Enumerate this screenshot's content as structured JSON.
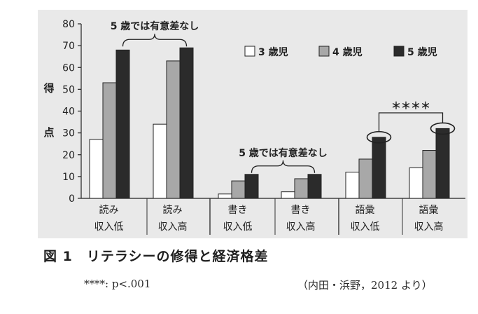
{
  "chart_data": {
    "type": "bar",
    "categories": [
      [
        "読み",
        "収入低"
      ],
      [
        "読み",
        "収入高"
      ],
      [
        "書き",
        "収入低"
      ],
      [
        "書き",
        "収入高"
      ],
      [
        "語彙",
        "収入低"
      ],
      [
        "語彙",
        "収入高"
      ]
    ],
    "series": [
      {
        "name": "3 歳児",
        "color": "#ffffff",
        "values": [
          27,
          34,
          2,
          3,
          12,
          14
        ]
      },
      {
        "name": "4 歳児",
        "color": "#a8a8a8",
        "values": [
          53,
          63,
          8,
          9,
          18,
          22
        ]
      },
      {
        "name": "5 歳児",
        "color": "#2b2b2b",
        "values": [
          68,
          69,
          11,
          11,
          28,
          32
        ]
      }
    ],
    "ylabel": [
      "得",
      "点"
    ],
    "ylim": [
      0,
      80
    ],
    "yticks": [
      0,
      10,
      20,
      30,
      40,
      50,
      60,
      70,
      80
    ],
    "legend_position": "top-right",
    "annotations": [
      {
        "text": "5 歳では有意差なし",
        "groups": [
          0,
          1
        ]
      },
      {
        "text": "5 歳では有意差なし",
        "groups": [
          2,
          3
        ]
      },
      {
        "text": "＊＊＊＊",
        "groups": [
          4,
          5
        ],
        "circled_series": 2
      }
    ]
  },
  "caption": {
    "title": "図 1　リテラシーの修得と経済格差",
    "note": "****: p<.001",
    "source": "（内田・浜野，2012 より）"
  }
}
